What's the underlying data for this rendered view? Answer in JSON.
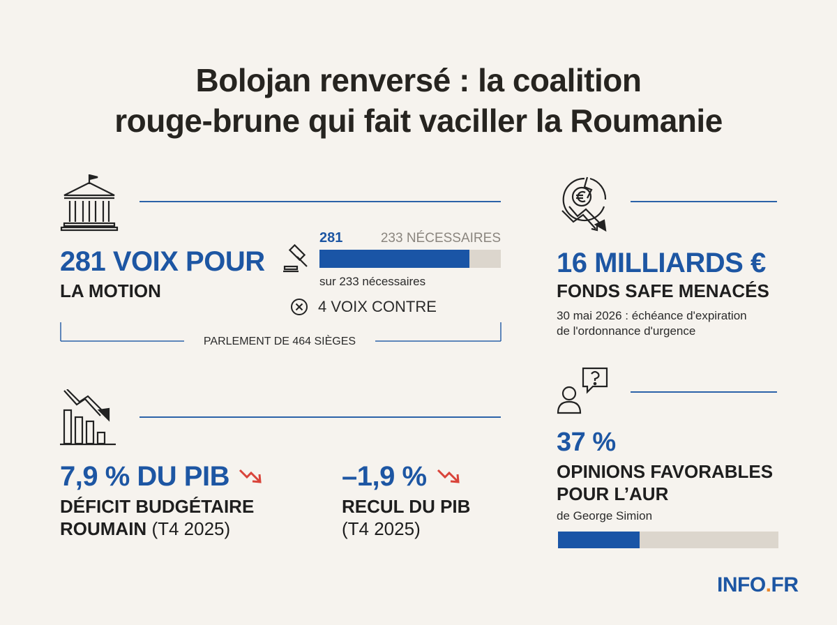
{
  "title": {
    "line1": "Bolojan renversé : la coalition",
    "line2": "rouge-brune qui fait vaciller la Roumanie"
  },
  "motion": {
    "headline": "281 VOIX POUR",
    "subline": "LA MOTION",
    "bar_value_label": "281",
    "bar_threshold_label": "233 NÉCESSAIRES",
    "bar_caption": "sur 233 nécessaires",
    "votes_for": 281,
    "bar_max": 340,
    "against_label": "4 VOIX CONTRE",
    "parliament_label": "PARLEMENT DE 464 SIÈGES"
  },
  "safe": {
    "headline": "16 MILLIARDS €",
    "subline": "FONDS SAFE MENACÉS",
    "note_line1": "30 mai 2026 : échéance d'expiration",
    "note_line2": "de l'ordonnance d'urgence"
  },
  "deficit": {
    "headline": "7,9 % DU PIB",
    "subline_bold": "DÉFICIT BUDGÉTAIRE",
    "subline2_bold": "ROUMAIN",
    "subline2_regular": "(T4 2025)"
  },
  "gdp": {
    "headline": "–1,9 %",
    "subline_bold": "RECUL DU PIB",
    "subline2_regular": "(T4 2025)"
  },
  "opinion": {
    "headline": "37 %",
    "subline1": "OPINIONS FAVORABLES",
    "subline2": "POUR L’AUR",
    "caption": "de George Simion",
    "percent": 37
  },
  "footer": {
    "logo_part1": "INFO",
    "logo_dot": ".",
    "logo_part2": "FR"
  },
  "colors": {
    "accent": "#1d56a3",
    "trend_down": "#d9443a",
    "orange": "#e8862a"
  }
}
